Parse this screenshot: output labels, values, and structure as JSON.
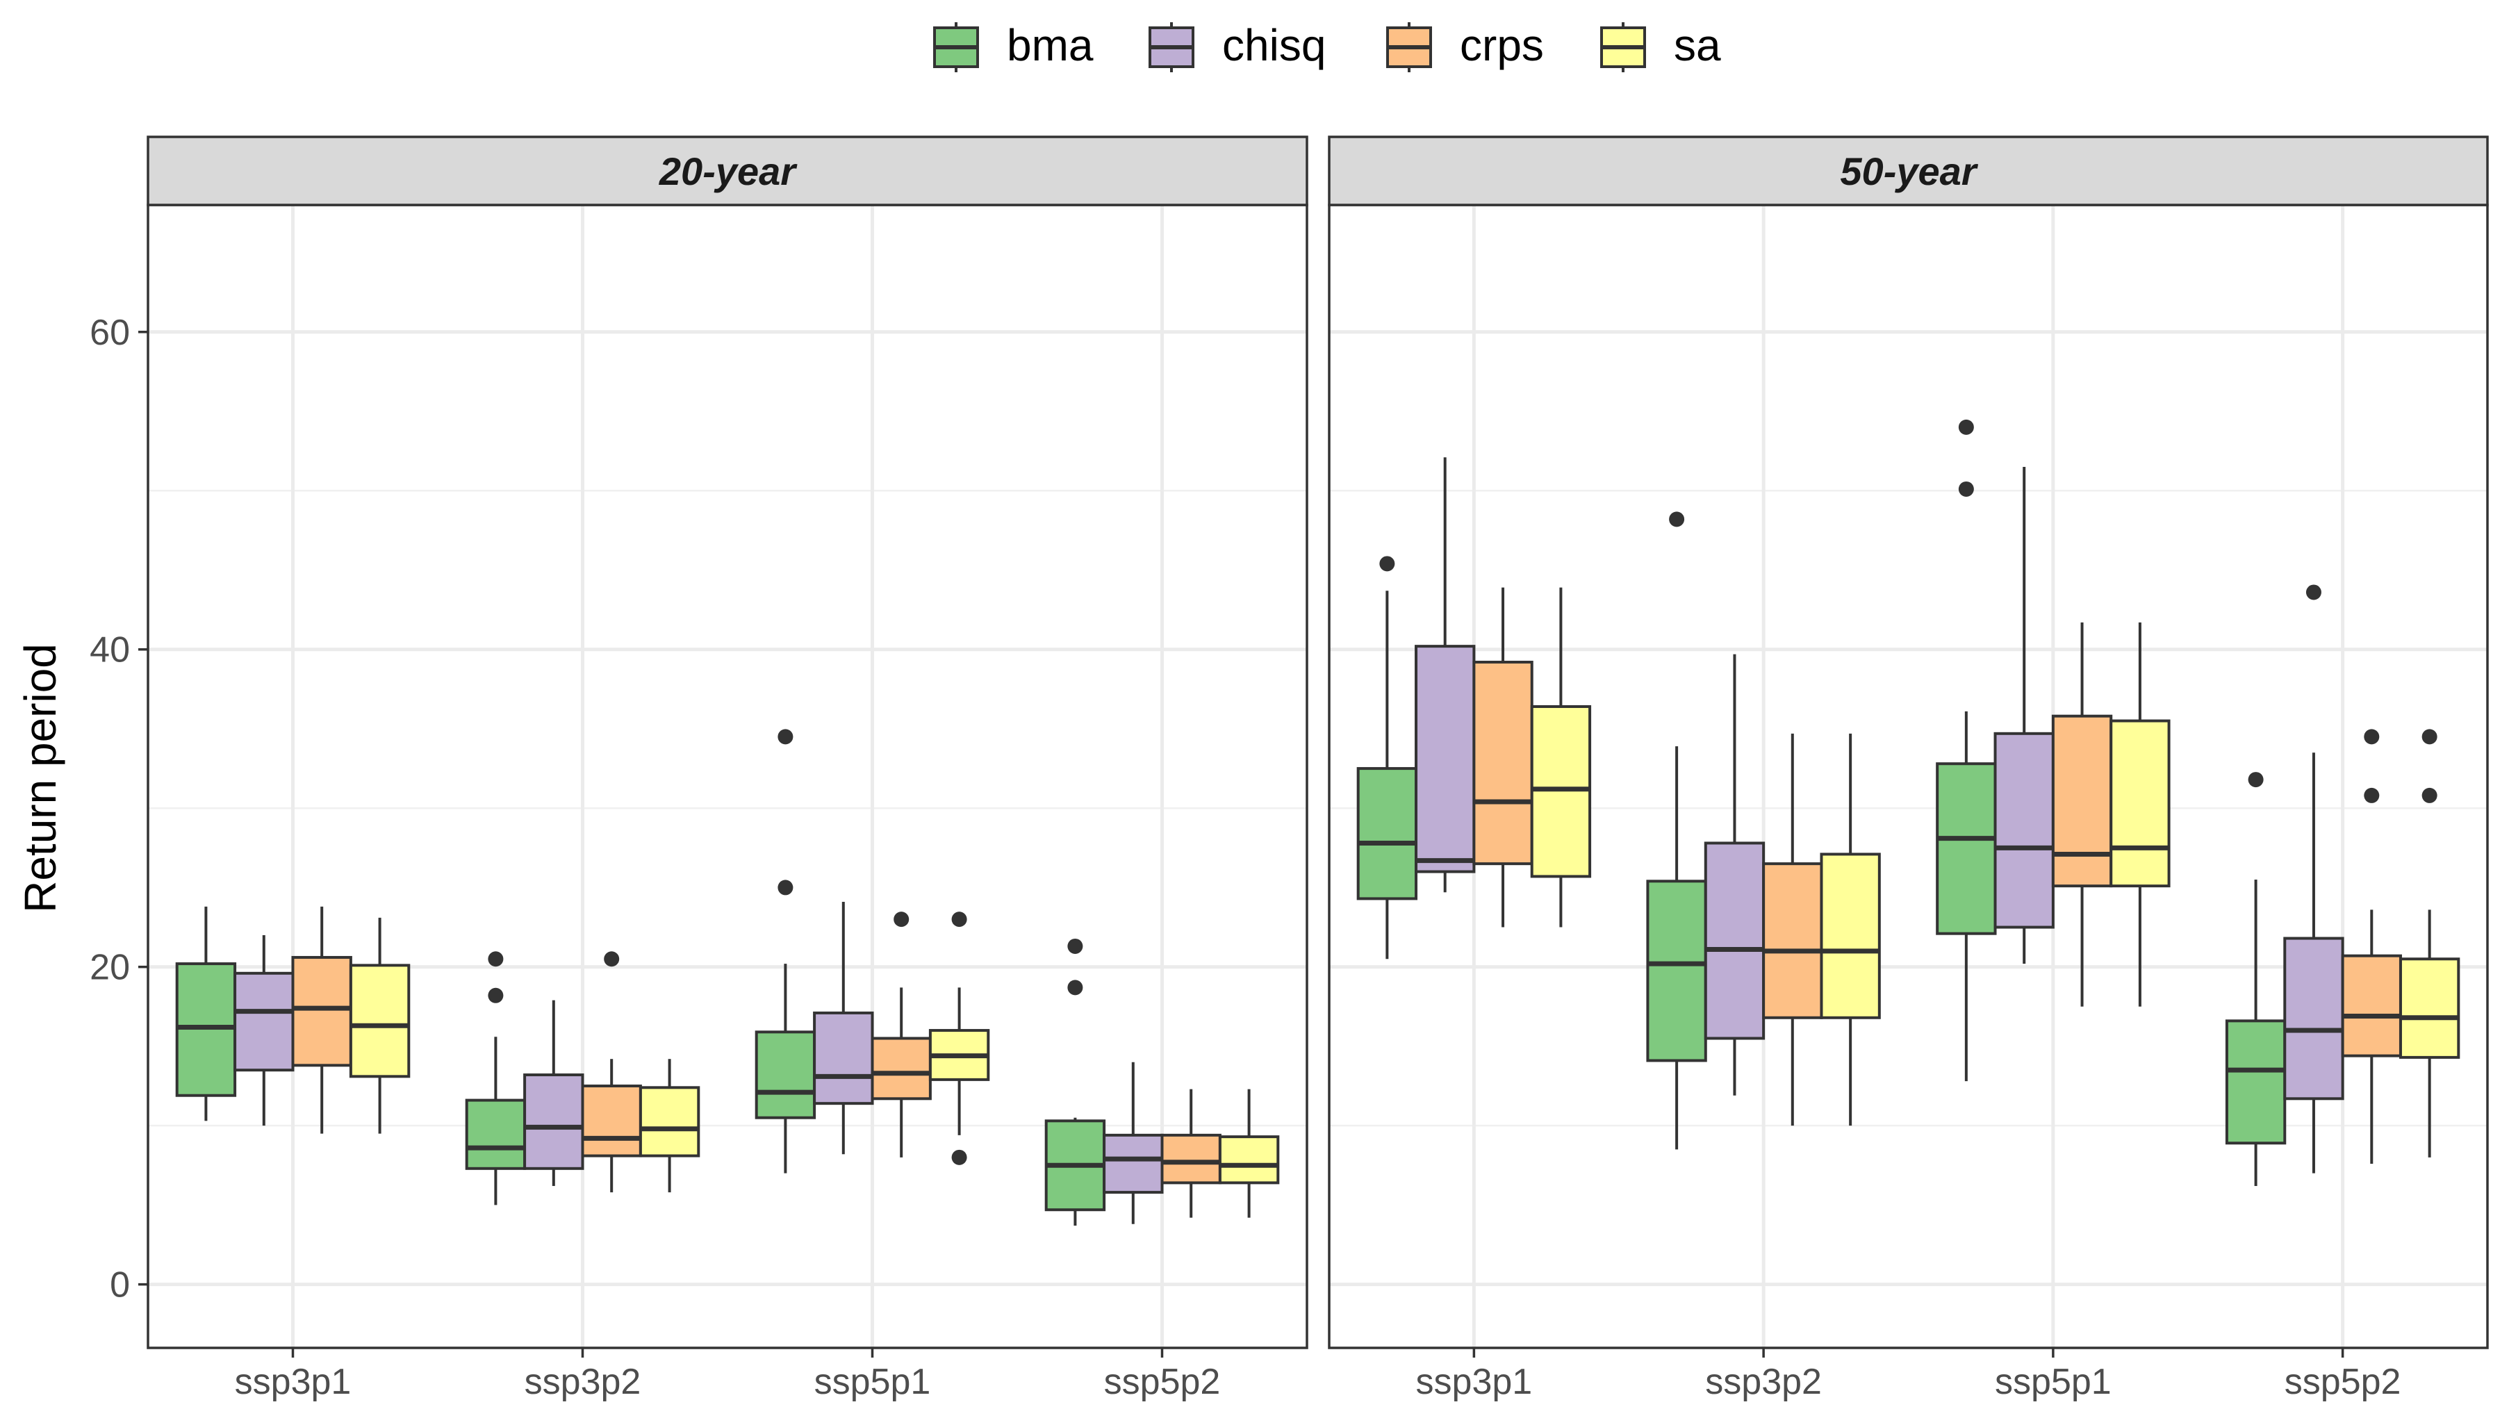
{
  "chart_data": {
    "type": "boxplot",
    "ylabel": "Return period",
    "ylim": [
      -4,
      68
    ],
    "y_ticks": [
      0,
      20,
      40,
      60
    ],
    "y_tick_labels": [
      "0",
      "20",
      "40",
      "60"
    ],
    "grid": true,
    "legend_position": "top",
    "legend": [
      {
        "name": "bma",
        "color": "#7FC97F"
      },
      {
        "name": "chisq",
        "color": "#BEAED4"
      },
      {
        "name": "crps",
        "color": "#FDC086"
      },
      {
        "name": "sa",
        "color": "#FFFF99"
      }
    ],
    "categories": [
      "ssp3p1",
      "ssp3p2",
      "ssp5p1",
      "ssp5p2"
    ],
    "panels": [
      {
        "title": "20-year",
        "groups": [
          {
            "category": "ssp3p1",
            "boxes": [
              {
                "series": "bma",
                "min": 10.3,
                "q1": 11.9,
                "median": 16.2,
                "q3": 20.2,
                "max": 23.8,
                "outliers": []
              },
              {
                "series": "chisq",
                "min": 10.0,
                "q1": 13.5,
                "median": 17.2,
                "q3": 19.6,
                "max": 22.0,
                "outliers": []
              },
              {
                "series": "crps",
                "min": 9.5,
                "q1": 13.8,
                "median": 17.4,
                "q3": 20.6,
                "max": 23.8,
                "outliers": []
              },
              {
                "series": "sa",
                "min": 9.5,
                "q1": 13.1,
                "median": 16.3,
                "q3": 20.1,
                "max": 23.1,
                "outliers": []
              }
            ]
          },
          {
            "category": "ssp3p2",
            "boxes": [
              {
                "series": "bma",
                "min": 5.0,
                "q1": 7.3,
                "median": 8.6,
                "q3": 11.6,
                "max": 15.6,
                "outliers": [
                  18.2,
                  20.5
                ]
              },
              {
                "series": "chisq",
                "min": 6.2,
                "q1": 7.3,
                "median": 9.9,
                "q3": 13.2,
                "max": 17.9,
                "outliers": []
              },
              {
                "series": "crps",
                "min": 5.8,
                "q1": 8.1,
                "median": 9.2,
                "q3": 12.5,
                "max": 14.2,
                "outliers": [
                  20.5
                ]
              },
              {
                "series": "sa",
                "min": 5.8,
                "q1": 8.1,
                "median": 9.8,
                "q3": 12.4,
                "max": 14.2,
                "outliers": []
              }
            ]
          },
          {
            "category": "ssp5p1",
            "boxes": [
              {
                "series": "bma",
                "min": 7.0,
                "q1": 10.5,
                "median": 12.1,
                "q3": 15.9,
                "max": 20.2,
                "outliers": [
                  25.0,
                  34.5
                ]
              },
              {
                "series": "chisq",
                "min": 8.2,
                "q1": 11.4,
                "median": 13.1,
                "q3": 17.1,
                "max": 24.1,
                "outliers": []
              },
              {
                "series": "crps",
                "min": 8.0,
                "q1": 11.7,
                "median": 13.3,
                "q3": 15.5,
                "max": 18.7,
                "outliers": [
                  23.0
                ]
              },
              {
                "series": "sa",
                "min": 9.4,
                "q1": 12.9,
                "median": 14.4,
                "q3": 16.0,
                "max": 18.7,
                "outliers": [
                  8.0,
                  23.0
                ]
              }
            ]
          },
          {
            "category": "ssp5p2",
            "boxes": [
              {
                "series": "bma",
                "min": 3.7,
                "q1": 4.7,
                "median": 7.5,
                "q3": 10.3,
                "max": 10.5,
                "outliers": [
                  18.7,
                  21.3
                ]
              },
              {
                "series": "chisq",
                "min": 3.8,
                "q1": 5.8,
                "median": 7.9,
                "q3": 9.4,
                "max": 14.0,
                "outliers": []
              },
              {
                "series": "crps",
                "min": 4.2,
                "q1": 6.4,
                "median": 7.7,
                "q3": 9.4,
                "max": 12.3,
                "outliers": []
              },
              {
                "series": "sa",
                "min": 4.2,
                "q1": 6.4,
                "median": 7.5,
                "q3": 9.3,
                "max": 12.3,
                "outliers": []
              }
            ]
          }
        ]
      },
      {
        "title": "50-year",
        "groups": [
          {
            "category": "ssp3p1",
            "boxes": [
              {
                "series": "bma",
                "min": 20.5,
                "q1": 24.3,
                "median": 27.8,
                "q3": 32.5,
                "max": 43.7,
                "outliers": [
                  45.4
                ]
              },
              {
                "series": "chisq",
                "min": 24.7,
                "q1": 26.0,
                "median": 26.7,
                "q3": 40.2,
                "max": 52.1,
                "outliers": []
              },
              {
                "series": "crps",
                "min": 22.5,
                "q1": 26.5,
                "median": 30.4,
                "q3": 39.2,
                "max": 43.9,
                "outliers": []
              },
              {
                "series": "sa",
                "min": 22.5,
                "q1": 25.7,
                "median": 31.2,
                "q3": 36.4,
                "max": 43.9,
                "outliers": []
              }
            ]
          },
          {
            "category": "ssp3p2",
            "boxes": [
              {
                "series": "bma",
                "min": 8.5,
                "q1": 14.1,
                "median": 20.2,
                "q3": 25.4,
                "max": 33.9,
                "outliers": [
                  48.2
                ]
              },
              {
                "series": "chisq",
                "min": 11.9,
                "q1": 15.5,
                "median": 21.1,
                "q3": 27.8,
                "max": 39.7,
                "outliers": []
              },
              {
                "series": "crps",
                "min": 10.0,
                "q1": 16.8,
                "median": 21.0,
                "q3": 26.5,
                "max": 34.7,
                "outliers": []
              },
              {
                "series": "sa",
                "min": 10.0,
                "q1": 16.8,
                "median": 21.0,
                "q3": 27.1,
                "max": 34.7,
                "outliers": []
              }
            ]
          },
          {
            "category": "ssp5p1",
            "boxes": [
              {
                "series": "bma",
                "min": 12.8,
                "q1": 22.1,
                "median": 28.1,
                "q3": 32.8,
                "max": 36.1,
                "outliers": [
                  50.1,
                  54.0
                ]
              },
              {
                "series": "chisq",
                "min": 20.2,
                "q1": 22.5,
                "median": 27.5,
                "q3": 34.7,
                "max": 51.5,
                "outliers": []
              },
              {
                "series": "crps",
                "min": 17.5,
                "q1": 25.1,
                "median": 27.1,
                "q3": 35.8,
                "max": 41.7,
                "outliers": []
              },
              {
                "series": "sa",
                "min": 17.5,
                "q1": 25.1,
                "median": 27.5,
                "q3": 35.5,
                "max": 41.7,
                "outliers": []
              }
            ]
          },
          {
            "category": "ssp5p2",
            "boxes": [
              {
                "series": "bma",
                "min": 6.2,
                "q1": 8.9,
                "median": 13.5,
                "q3": 16.6,
                "max": 25.5,
                "outliers": [
                  31.8
                ]
              },
              {
                "series": "chisq",
                "min": 7.0,
                "q1": 11.7,
                "median": 16.0,
                "q3": 21.8,
                "max": 33.5,
                "outliers": [
                  43.6
                ]
              },
              {
                "series": "crps",
                "min": 7.6,
                "q1": 14.4,
                "median": 16.9,
                "q3": 20.7,
                "max": 23.6,
                "outliers": [
                  30.8,
                  34.5
                ]
              },
              {
                "series": "sa",
                "min": 8.0,
                "q1": 14.3,
                "median": 16.8,
                "q3": 20.5,
                "max": 23.6,
                "outliers": [
                  30.8,
                  34.5
                ]
              }
            ]
          }
        ]
      }
    ]
  }
}
